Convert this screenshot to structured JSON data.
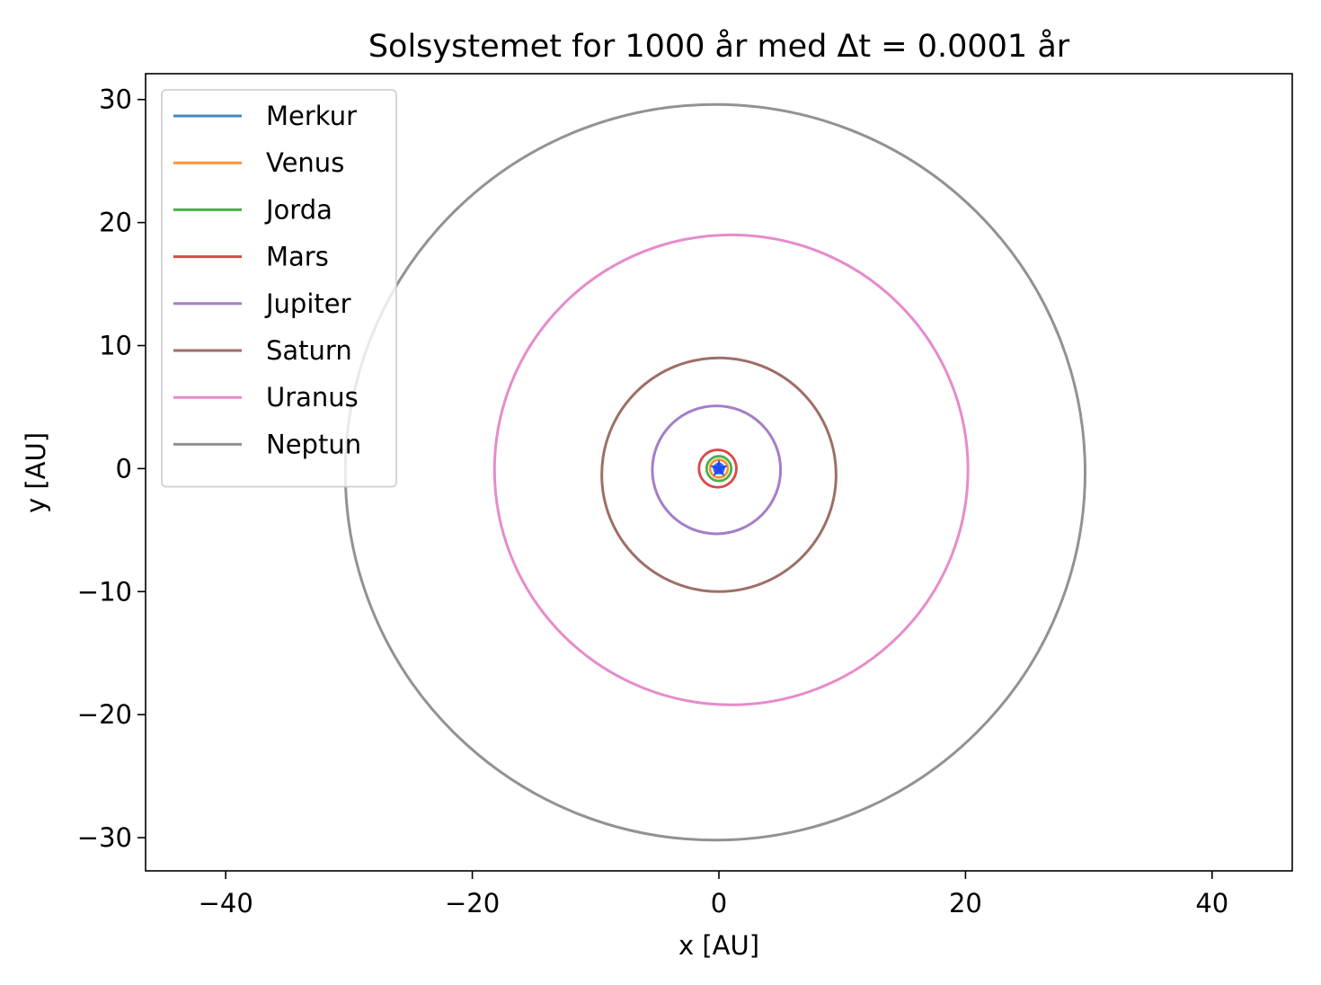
{
  "chart_data": {
    "type": "line",
    "title": "Solsystemet for 1000 år med Δt = 0.0001 år",
    "xlabel": "x [AU]",
    "ylabel": "y [AU]",
    "xlim": [
      -46.5,
      46.5
    ],
    "ylim": [
      -32.7,
      32.1
    ],
    "xticks": [
      -40,
      -20,
      0,
      20,
      40
    ],
    "xtick_labels": [
      "−40",
      "−20",
      "0",
      "20",
      "40"
    ],
    "yticks": [
      -30,
      -20,
      -10,
      0,
      10,
      20,
      30
    ],
    "ytick_labels": [
      "−30",
      "−20",
      "−10",
      "0",
      "10",
      "20",
      "30"
    ],
    "grid": false,
    "legend_position": "upper-left",
    "sun": {
      "x": 0,
      "y": 0,
      "marker": "star",
      "color": "#1f4bff"
    },
    "series": [
      {
        "name": "Merkur",
        "color": "#1f77b4",
        "cx": 0.0,
        "cy": 0.0,
        "rx": 0.39,
        "ry": 0.39
      },
      {
        "name": "Venus",
        "color": "#ff7f0e",
        "cx": 0.0,
        "cy": 0.0,
        "rx": 0.72,
        "ry": 0.72
      },
      {
        "name": "Jorda",
        "color": "#2ca02c",
        "cx": 0.0,
        "cy": 0.0,
        "rx": 1.0,
        "ry": 1.0
      },
      {
        "name": "Mars",
        "color": "#d62728",
        "cx": -0.1,
        "cy": 0.0,
        "rx": 1.52,
        "ry": 1.52
      },
      {
        "name": "Jupiter",
        "color": "#9467bd",
        "cx": -0.2,
        "cy": -0.1,
        "rx": 5.2,
        "ry": 5.2
      },
      {
        "name": "Saturn",
        "color": "#8c564b",
        "cx": 0.0,
        "cy": -0.5,
        "rx": 9.5,
        "ry": 9.5
      },
      {
        "name": "Uranus",
        "color": "#e377c2",
        "cx": 1.0,
        "cy": -0.1,
        "rx": 19.2,
        "ry": 19.1
      },
      {
        "name": "Neptun",
        "color": "#7f7f7f",
        "cx": -0.3,
        "cy": -0.3,
        "rx": 30.0,
        "ry": 29.9
      }
    ]
  }
}
